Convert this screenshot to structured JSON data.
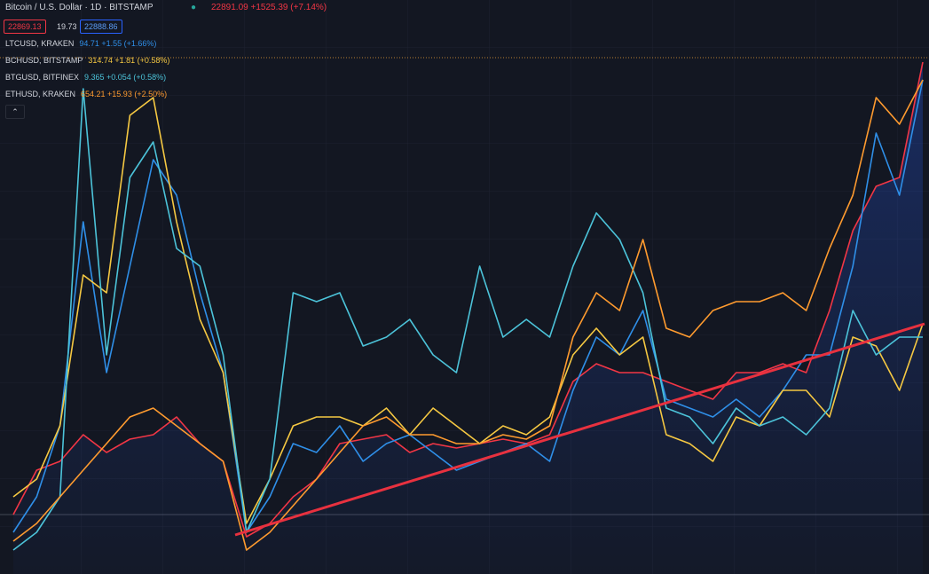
{
  "header": {
    "title": "Bitcoin / U.S. Dollar · 1D · BITSTAMP",
    "quote": "22891.09 +1525.39 (+7.14%)",
    "bid": "22869.13",
    "spread": "19.73",
    "ask": "22888.86"
  },
  "chart_data": {
    "type": "line",
    "ylim": [
      0,
      647
    ],
    "series": [
      {
        "color": "#f23645",
        "area": true,
        "values": [
          67,
          117,
          127,
          157,
          137,
          152,
          157,
          177,
          147,
          127,
          42,
          57,
          87,
          107,
          147,
          152,
          157,
          137,
          147,
          142,
          147,
          152,
          147,
          157,
          217,
          237,
          227,
          227,
          217,
          207,
          197,
          227,
          227,
          237,
          227,
          297,
          387,
          437,
          447,
          577
        ]
      },
      {
        "name": "LTCUSD, KRAKEN",
        "last": "94.71 +1.55 (+1.66%)",
        "color": "#2f8fe8",
        "values": [
          47,
          87,
          167,
          397,
          227,
          347,
          467,
          427,
          317,
          227,
          47,
          87,
          147,
          137,
          167,
          127,
          147,
          157,
          137,
          117,
          127,
          137,
          147,
          127,
          207,
          267,
          247,
          297,
          197,
          187,
          177,
          197,
          177,
          207,
          247,
          247,
          347,
          497,
          427,
          557
        ]
      },
      {
        "name": "BCHUSD, BITSTAMP",
        "last": "314.74 +1.81 (+0.58%)",
        "color": "#f5c842",
        "values": [
          87,
          107,
          167,
          337,
          317,
          517,
          537,
          397,
          287,
          227,
          57,
          107,
          167,
          177,
          177,
          167,
          187,
          157,
          187,
          167,
          147,
          167,
          157,
          177,
          247,
          277,
          247,
          267,
          157,
          147,
          127,
          177,
          167,
          207,
          207,
          177,
          267,
          257,
          207,
          282
        ]
      },
      {
        "name": "BTGUSD, BITFINEX",
        "last": "9.365 +0.054 (+0.58%)",
        "color": "#4cc3d9",
        "values": [
          27,
          47,
          87,
          547,
          247,
          447,
          487,
          367,
          347,
          247,
          47,
          107,
          317,
          307,
          317,
          257,
          267,
          287,
          247,
          227,
          347,
          267,
          287,
          267,
          347,
          407,
          377,
          317,
          187,
          177,
          147,
          187,
          167,
          177,
          157,
          187,
          297,
          247,
          267,
          267
        ]
      },
      {
        "name": "ETHUSD, KRAKEN",
        "last": "654.21 +15.93 (+2.50%)",
        "color": "#ff9b2f",
        "values": [
          37,
          57,
          87,
          117,
          147,
          177,
          187,
          167,
          147,
          127,
          27,
          47,
          77,
          107,
          137,
          167,
          177,
          157,
          157,
          147,
          147,
          157,
          152,
          167,
          267,
          317,
          297,
          377,
          277,
          267,
          297,
          307,
          307,
          317,
          297,
          367,
          427,
          537,
          507,
          557
        ]
      }
    ]
  }
}
